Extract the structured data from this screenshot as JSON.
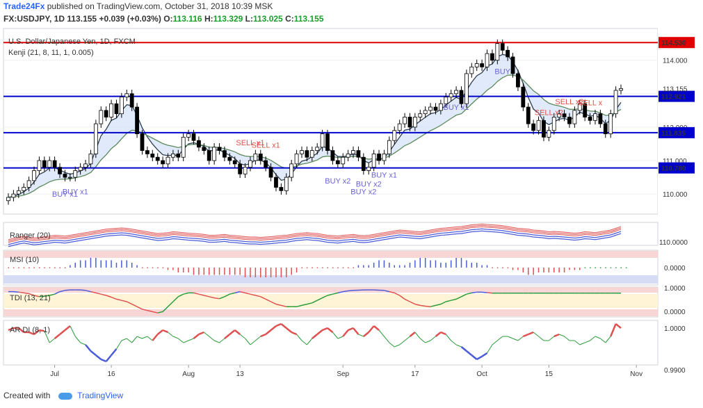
{
  "header": {
    "brand": "Trade24Fx",
    "published": "published on TradingView.com, October 31, 2018 10:39 MSK",
    "symbol": "FX:USDJPY, 1D",
    "last": "113.155",
    "change": "+0.039 (+0.03%)",
    "o_label": "O:",
    "o_val": "113.116",
    "h_label": "H:",
    "h_val": "113.329",
    "l_label": "L:",
    "l_val": "113.025",
    "c_label": "C:",
    "c_val": "113.155"
  },
  "footer": {
    "created_with": "Created with",
    "tradingview": "TradingView"
  },
  "colors": {
    "up": "#ffffff",
    "down": "#000000",
    "level": "#0000cc",
    "resistance": "#e00000",
    "band": "#c8d8f5",
    "buy": "#6b63d8",
    "sell": "#e0504a"
  },
  "chart_data": {
    "type": "candlestick",
    "title": "U.S. Dollar/Japanese Yen, 1D, FXCM",
    "indicator": "Kenji (21, 8, 11, 1, 0.005)",
    "price_ticks": [
      "114.000",
      "113.000",
      "112.000",
      "111.000",
      "110.000"
    ],
    "price_range": [
      109.4,
      114.95
    ],
    "current_price": "113.155",
    "levels": [
      {
        "value": 114.53,
        "label": "114.530",
        "kind": "resistance"
      },
      {
        "value": 112.921,
        "label": "112.921",
        "kind": "level"
      },
      {
        "value": 111.835,
        "label": "111.835",
        "kind": "level"
      },
      {
        "value": 110.78,
        "label": "110.780",
        "kind": "level"
      }
    ],
    "x_labels": [
      {
        "i": 9,
        "text": "Jul"
      },
      {
        "i": 20,
        "text": "16"
      },
      {
        "i": 35,
        "text": "Aug"
      },
      {
        "i": 45,
        "text": "13"
      },
      {
        "i": 65,
        "text": "Sep"
      },
      {
        "i": 79,
        "text": "17"
      },
      {
        "i": 92,
        "text": "Oct"
      },
      {
        "i": 105,
        "text": "15"
      },
      {
        "i": 122,
        "text": "Nov"
      }
    ],
    "closes": [
      109.9,
      110.0,
      110.1,
      110.2,
      110.4,
      110.7,
      111.0,
      110.8,
      111.0,
      110.8,
      110.6,
      110.5,
      110.5,
      110.7,
      110.8,
      110.9,
      111.2,
      112.1,
      112.5,
      112.3,
      112.7,
      112.4,
      112.9,
      113.0,
      112.6,
      111.8,
      111.3,
      111.2,
      111.1,
      111.0,
      110.9,
      111.1,
      111.2,
      111.1,
      111.7,
      111.8,
      111.6,
      111.4,
      111.3,
      111.0,
      111.4,
      111.3,
      111.1,
      111.0,
      110.9,
      110.6,
      110.8,
      111.0,
      111.2,
      111.0,
      110.8,
      110.5,
      110.2,
      110.1,
      110.5,
      110.9,
      111.2,
      111.3,
      111.1,
      111.3,
      111.4,
      111.8,
      111.3,
      111.0,
      110.9,
      111.1,
      111.2,
      111.3,
      111.1,
      110.7,
      110.8,
      111.2,
      111.0,
      111.2,
      111.6,
      111.9,
      112.1,
      112.3,
      112.0,
      112.3,
      112.4,
      112.5,
      112.6,
      112.5,
      112.7,
      112.9,
      113.0,
      113.1,
      112.7,
      113.6,
      113.8,
      113.9,
      113.8,
      114.2,
      114.0,
      114.5,
      114.3,
      114.1,
      113.6,
      113.2,
      112.6,
      112.1,
      111.9,
      112.2,
      111.7,
      111.9,
      112.3,
      112.4,
      112.3,
      112.1,
      112.5,
      112.7,
      112.3,
      112.2,
      112.4,
      112.1,
      111.8,
      112.4,
      113.1,
      113.155
    ],
    "signals": [
      {
        "i": 11,
        "text": "BUY x1",
        "side": "buy"
      },
      {
        "i": 13,
        "text": "BUY x1",
        "side": "buy"
      },
      {
        "i": 47,
        "text": "SELL x1",
        "side": "sell"
      },
      {
        "i": 50,
        "text": "SELL x1",
        "side": "sell"
      },
      {
        "i": 64,
        "text": "BUY x2",
        "side": "buy"
      },
      {
        "i": 69,
        "text": "BUY x2",
        "side": "buy"
      },
      {
        "i": 70,
        "text": "BUY x2",
        "side": "buy"
      },
      {
        "i": 73,
        "text": "BUY x1",
        "side": "buy"
      },
      {
        "i": 87,
        "text": "BUY x1",
        "side": "buy"
      },
      {
        "i": 96,
        "text": "BUY",
        "side": "buy"
      },
      {
        "i": 105,
        "text": "SELL x2",
        "side": "sell"
      },
      {
        "i": 109,
        "text": "SELL x2",
        "side": "sell"
      },
      {
        "i": 113,
        "text": "SELL x",
        "side": "sell"
      }
    ],
    "ranger": {
      "title": "Ranger (20)",
      "tick": "110.0000",
      "values": [
        0.05,
        0.12,
        0.2,
        0.25,
        0.2,
        0.15,
        0.18,
        0.22,
        0.25,
        0.3,
        0.28,
        0.25,
        0.3,
        0.35,
        0.4,
        0.45,
        0.5,
        0.55,
        0.6,
        0.65,
        0.68,
        0.7,
        0.72,
        0.7,
        0.65,
        0.6,
        0.55,
        0.5,
        0.45,
        0.4,
        0.42,
        0.45,
        0.5,
        0.48,
        0.45,
        0.42,
        0.4,
        0.38,
        0.35,
        0.3,
        0.3,
        0.32,
        0.35,
        0.3,
        0.28,
        0.25,
        0.22,
        0.2,
        0.2,
        0.18,
        0.2,
        0.22,
        0.25,
        0.28,
        0.3,
        0.35,
        0.4,
        0.42,
        0.45,
        0.42,
        0.4,
        0.35,
        0.3,
        0.28,
        0.25,
        0.3,
        0.32,
        0.35,
        0.3,
        0.28,
        0.3,
        0.35,
        0.4,
        0.45,
        0.5,
        0.55,
        0.6,
        0.58,
        0.55,
        0.52,
        0.5,
        0.55,
        0.6,
        0.65,
        0.7,
        0.72,
        0.75,
        0.78,
        0.8,
        0.85,
        0.9,
        0.92,
        0.95,
        0.92,
        0.9,
        0.88,
        0.85,
        0.8,
        0.75,
        0.7,
        0.68,
        0.65,
        0.6,
        0.58,
        0.55,
        0.5,
        0.52,
        0.5,
        0.48,
        0.45,
        0.42,
        0.45,
        0.5,
        0.48,
        0.45,
        0.5,
        0.55,
        0.6,
        0.7,
        0.8
      ]
    },
    "msi": {
      "title": "MSI (10)",
      "tick": "0.0000",
      "values": [
        0,
        0,
        0,
        0,
        0,
        0,
        0,
        0,
        0,
        0,
        0,
        0,
        1,
        2,
        3,
        3,
        4,
        4,
        3,
        3,
        3,
        2,
        3,
        3,
        2,
        1,
        0,
        0,
        0,
        0,
        0,
        -1,
        -1,
        -2,
        -2,
        -2,
        -3,
        -3,
        -3,
        -3,
        -3,
        -3,
        -3,
        -3,
        -3,
        -3,
        -4,
        -4,
        -4,
        -4,
        -4,
        -4,
        -4,
        -4,
        -4,
        -3,
        -2,
        0,
        0,
        0,
        0,
        0,
        0,
        0,
        0,
        0,
        0,
        0,
        1,
        1,
        1,
        2,
        3,
        3,
        2,
        1,
        1,
        1,
        2,
        3,
        4,
        4,
        3,
        3,
        2,
        2,
        3,
        4,
        4,
        3,
        2,
        2,
        1,
        1,
        0,
        0,
        0,
        0,
        -1,
        -1,
        -2,
        -3,
        -3,
        -2,
        -2,
        -2,
        -2,
        -2,
        -2,
        -1,
        -1,
        -1,
        0,
        0,
        0,
        0,
        0,
        0,
        0,
        0,
        0
      ]
    },
    "tdi": {
      "title": "TDI (13, 21)",
      "ticks": [
        "1.0000",
        "0.0000"
      ],
      "values": [
        0.9,
        0.9,
        0.88,
        0.85,
        0.82,
        0.75,
        0.7,
        0.72,
        0.75,
        0.8,
        0.9,
        0.95,
        0.97,
        0.97,
        0.97,
        0.95,
        0.9,
        0.85,
        0.8,
        0.75,
        0.68,
        0.6,
        0.55,
        0.5,
        0.4,
        0.3,
        0.2,
        0.15,
        0.1,
        0.05,
        0.1,
        0.3,
        0.5,
        0.7,
        0.8,
        0.85,
        0.85,
        0.8,
        0.75,
        0.7,
        0.65,
        0.62,
        0.7,
        0.8,
        0.85,
        0.9,
        0.85,
        0.8,
        0.75,
        0.7,
        0.6,
        0.5,
        0.4,
        0.35,
        0.3,
        0.3,
        0.3,
        0.35,
        0.4,
        0.45,
        0.55,
        0.65,
        0.75,
        0.8,
        0.85,
        0.9,
        0.93,
        0.95,
        0.96,
        0.97,
        0.97,
        0.97,
        0.96,
        0.95,
        0.9,
        0.85,
        0.75,
        0.6,
        0.5,
        0.4,
        0.35,
        0.32,
        0.3,
        0.35,
        0.4,
        0.5,
        0.55,
        0.6,
        0.7,
        0.8,
        0.85,
        0.88,
        0.88,
        0.86,
        0.84,
        0.84,
        0.84,
        0.84,
        0.84,
        0.84,
        0.84,
        0.84,
        0.84,
        0.84,
        0.84,
        0.84,
        0.84,
        0.84,
        0.84,
        0.84,
        0.84,
        0.84,
        0.84,
        0.84,
        0.84,
        0.84,
        0.84,
        0.84,
        0.84,
        0.84
      ]
    },
    "ardi": {
      "title": "AR DI (8, 1)",
      "ticks": [
        "1.0000",
        "0.9900"
      ],
      "values": [
        0.9995,
        1.0,
        1.0,
        0.999,
        0.999,
        0.9985,
        0.9995,
        0.9993,
        0.9965,
        0.9975,
        0.9985,
        0.9995,
        1.0005,
        0.998,
        0.9965,
        0.996,
        0.9945,
        0.9935,
        0.9925,
        0.992,
        0.9935,
        0.995,
        0.997,
        0.9975,
        0.9965,
        0.998,
        0.9975,
        0.998,
        0.997,
        0.9985,
        0.9995,
        0.999,
        0.998,
        0.9975,
        0.9965,
        0.997,
        0.9975,
        0.9985,
        0.999,
        0.998,
        0.997,
        0.9965,
        0.9975,
        0.9985,
        0.9995,
        0.9985,
        0.9975,
        0.996,
        0.997,
        0.998,
        0.9985,
        0.9995,
        1.0005,
        1.001,
        1.0,
        0.999,
        0.9985,
        0.997,
        0.996,
        0.9975,
        0.9985,
        0.9995,
        1.0,
        0.999,
        0.9975,
        0.998,
        0.9995,
        1.0,
        0.9985,
        0.998,
        0.999,
        1.0005,
        0.9995,
        0.998,
        0.9965,
        0.9955,
        0.996,
        0.997,
        0.998,
        0.999,
        0.9975,
        0.9965,
        0.997,
        0.998,
        0.999,
        0.9985,
        0.997,
        0.996,
        0.9955,
        0.9945,
        0.9935,
        0.9925,
        0.9932,
        0.994,
        0.996,
        0.997,
        0.998,
        0.998,
        0.9975,
        0.997,
        0.998,
        0.9985,
        0.999,
        0.998,
        0.997,
        0.997,
        0.998,
        0.9985,
        0.998,
        0.997,
        0.997,
        0.996,
        0.9965,
        0.997,
        0.998,
        0.9975,
        0.9965,
        0.998,
        1.001,
        1.0
      ]
    }
  }
}
